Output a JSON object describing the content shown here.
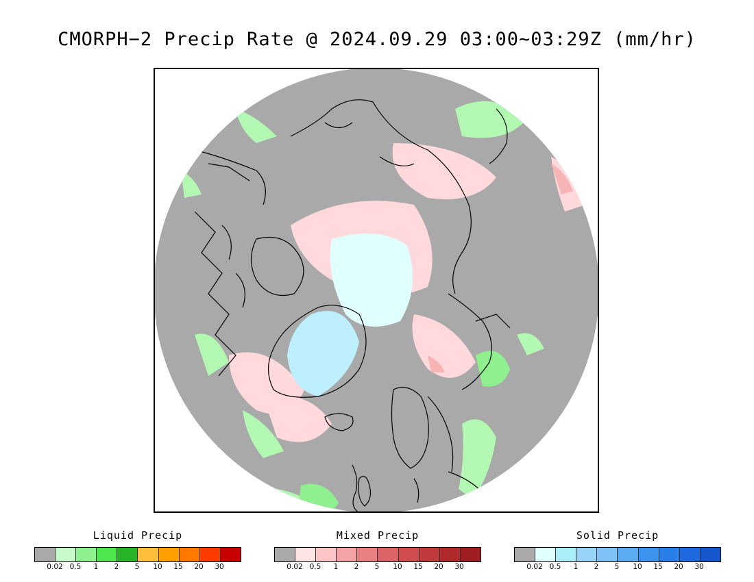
{
  "title": "CMORPH−2 Precip Rate @ 2024.09.29 03:00~03:29Z (mm/hr)",
  "map": {
    "projection": "north-polar-stereographic",
    "colors": {
      "no_precip": "#a9a9a9",
      "liquid_light": "#b2f7b2",
      "liquid_mid": "#8ff08f",
      "liquid_heavy": "#50e650",
      "mixed_light": "#ffd9dc",
      "mixed_mid": "#f7b4b4",
      "mixed_heavy": "#e58080",
      "solid_light": "#e0ffff",
      "solid_mid": "#bdefff",
      "coast": "#000000"
    }
  },
  "legends": [
    {
      "id": "liquid",
      "title": "Liquid Precip",
      "colors": [
        "#a9a9a9",
        "#c8facb",
        "#8ff08f",
        "#50e650",
        "#28b428",
        "#ffbf3c",
        "#ffa000",
        "#ff7800",
        "#ff3c00",
        "#c80000"
      ],
      "tick_labels": [
        "0.02",
        "0.5",
        "1",
        "2",
        "5",
        "10",
        "15",
        "20",
        "30"
      ]
    },
    {
      "id": "mixed",
      "title": "Mixed Precip",
      "colors": [
        "#a9a9a9",
        "#ffe4e6",
        "#fcc5c8",
        "#f4a3a6",
        "#e88082",
        "#dc6466",
        "#d04c4e",
        "#c03a3c",
        "#b02a2c",
        "#a01e22"
      ],
      "tick_labels": [
        "0.02",
        "0.5",
        "1",
        "2",
        "5",
        "10",
        "15",
        "20",
        "30"
      ]
    },
    {
      "id": "solid",
      "title": "Solid Precip",
      "colors": [
        "#a9a9a9",
        "#e0ffff",
        "#aaeef8",
        "#9ad3f8",
        "#7dc1f7",
        "#5aabf2",
        "#3c93ee",
        "#2a7ee8",
        "#1e68e0",
        "#1556cc"
      ],
      "tick_labels": [
        "0.02",
        "0.5",
        "1",
        "2",
        "5",
        "10",
        "15",
        "20",
        "30"
      ]
    }
  ]
}
